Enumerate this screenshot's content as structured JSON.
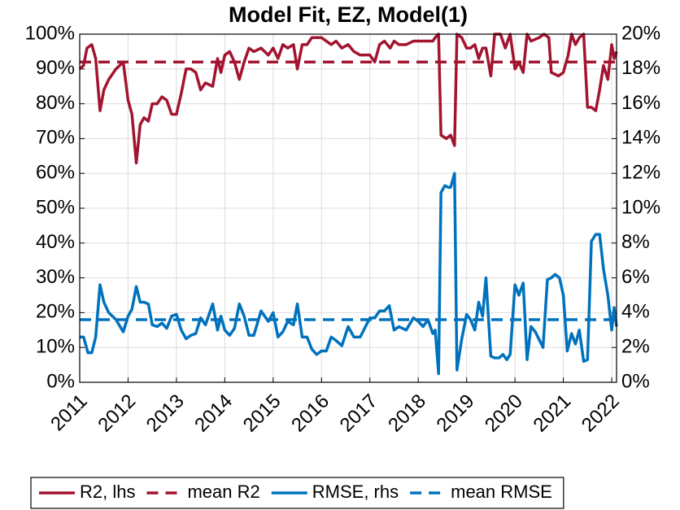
{
  "chart_data": {
    "type": "line",
    "title": "Model Fit, EZ, Model(1)",
    "xlim": [
      2011,
      2022.1
    ],
    "xticks": [
      2011,
      2012,
      2013,
      2014,
      2015,
      2016,
      2017,
      2018,
      2019,
      2020,
      2021,
      2022
    ],
    "ylim": [
      0,
      100
    ],
    "yticks": [
      {
        "value": 0,
        "label": "0%"
      },
      {
        "value": 10,
        "label": "10%"
      },
      {
        "value": 20,
        "label": "20%"
      },
      {
        "value": 30,
        "label": "30%"
      },
      {
        "value": 40,
        "label": "40%"
      },
      {
        "value": 50,
        "label": "50%"
      },
      {
        "value": 60,
        "label": "60%"
      },
      {
        "value": 70,
        "label": "70%"
      },
      {
        "value": 80,
        "label": "80%"
      },
      {
        "value": 90,
        "label": "90%"
      },
      {
        "value": 100,
        "label": "100%"
      }
    ],
    "y2lim": [
      0,
      20
    ],
    "y2ticks": [
      {
        "value": 0,
        "label": "0%"
      },
      {
        "value": 2,
        "label": "2%"
      },
      {
        "value": 4,
        "label": "4%"
      },
      {
        "value": 6,
        "label": "6%"
      },
      {
        "value": 8,
        "label": "8%"
      },
      {
        "value": 10,
        "label": "10%"
      },
      {
        "value": 12,
        "label": "12%"
      },
      {
        "value": 14,
        "label": "14%"
      },
      {
        "value": 16,
        "label": "16%"
      },
      {
        "value": 18,
        "label": "18%"
      },
      {
        "value": 20,
        "label": "20%"
      }
    ],
    "grid": true,
    "legend": "bottom",
    "series": [
      {
        "name": "R2, lhs",
        "color": "#a2142f",
        "line_style": "solid",
        "axis": "y",
        "x": [
          2011.0,
          2011.08,
          2011.15,
          2011.25,
          2011.33,
          2011.42,
          2011.5,
          2011.6,
          2011.75,
          2011.9,
          2012.0,
          2012.08,
          2012.17,
          2012.25,
          2012.33,
          2012.42,
          2012.5,
          2012.6,
          2012.7,
          2012.8,
          2012.9,
          2013.0,
          2013.1,
          2013.2,
          2013.3,
          2013.4,
          2013.5,
          2013.6,
          2013.75,
          2013.85,
          2013.92,
          2014.0,
          2014.1,
          2014.2,
          2014.3,
          2014.4,
          2014.5,
          2014.6,
          2014.75,
          2014.9,
          2015.0,
          2015.1,
          2015.2,
          2015.3,
          2015.42,
          2015.5,
          2015.6,
          2015.7,
          2015.8,
          2016.0,
          2016.2,
          2016.3,
          2016.42,
          2016.55,
          2016.67,
          2016.8,
          2017.0,
          2017.1,
          2017.2,
          2017.3,
          2017.42,
          2017.5,
          2017.6,
          2017.75,
          2017.9,
          2018.1,
          2018.3,
          2018.35,
          2018.42,
          2018.47,
          2018.58,
          2018.67,
          2018.75,
          2018.8,
          2018.9,
          2019.0,
          2019.08,
          2019.17,
          2019.25,
          2019.33,
          2019.4,
          2019.5,
          2019.58,
          2019.7,
          2019.8,
          2019.9,
          2020.0,
          2020.08,
          2020.17,
          2020.25,
          2020.33,
          2020.5,
          2020.6,
          2020.7,
          2020.75,
          2020.9,
          2021.0,
          2021.1,
          2021.17,
          2021.25,
          2021.33,
          2021.42,
          2021.5,
          2021.58,
          2021.67,
          2021.75,
          2021.83,
          2021.92,
          2022.0,
          2022.05,
          2022.1
        ],
        "values": [
          90,
          91,
          96,
          97,
          93,
          78,
          84,
          87,
          90,
          92,
          81,
          77,
          63,
          74,
          76,
          75,
          80,
          80,
          82,
          81,
          77,
          77,
          83,
          90,
          90,
          89,
          84,
          86,
          85,
          93,
          89,
          94,
          95,
          92,
          87,
          92,
          96,
          95,
          96,
          94,
          96,
          93,
          97,
          96,
          97,
          90,
          97,
          97,
          99,
          99,
          97,
          98,
          96,
          97,
          95,
          94,
          94,
          92,
          97,
          98,
          96,
          98,
          97,
          97,
          98,
          98,
          98,
          99,
          100,
          71,
          70,
          71,
          68,
          100,
          99,
          96,
          96,
          97,
          93,
          96,
          96,
          88,
          100,
          100,
          96,
          100,
          90,
          92,
          89,
          100,
          98,
          99,
          100,
          99,
          89,
          88,
          89,
          94,
          100,
          97,
          99,
          100,
          79,
          79,
          78,
          84,
          91,
          87,
          97,
          93,
          95
        ]
      },
      {
        "name": "mean R2",
        "color": "#a2142f",
        "line_style": "dashed",
        "axis": "y",
        "x": [
          2011,
          2022.1
        ],
        "values": [
          92,
          92
        ]
      },
      {
        "name": "RMSE, rhs",
        "color": "#0072bd",
        "line_style": "solid",
        "axis": "y2",
        "x": [
          2011.0,
          2011.08,
          2011.17,
          2011.25,
          2011.33,
          2011.42,
          2011.5,
          2011.6,
          2011.75,
          2011.9,
          2012.0,
          2012.08,
          2012.17,
          2012.25,
          2012.33,
          2012.42,
          2012.5,
          2012.6,
          2012.7,
          2012.8,
          2012.9,
          2013.0,
          2013.1,
          2013.2,
          2013.3,
          2013.4,
          2013.5,
          2013.6,
          2013.75,
          2013.85,
          2013.92,
          2014.0,
          2014.1,
          2014.2,
          2014.3,
          2014.4,
          2014.5,
          2014.6,
          2014.75,
          2014.9,
          2015.0,
          2015.1,
          2015.2,
          2015.3,
          2015.42,
          2015.5,
          2015.6,
          2015.7,
          2015.8,
          2015.9,
          2016.0,
          2016.1,
          2016.2,
          2016.3,
          2016.42,
          2016.55,
          2016.67,
          2016.8,
          2017.0,
          2017.1,
          2017.2,
          2017.3,
          2017.4,
          2017.5,
          2017.6,
          2017.75,
          2017.9,
          2018.0,
          2018.1,
          2018.2,
          2018.3,
          2018.35,
          2018.42,
          2018.47,
          2018.55,
          2018.62,
          2018.67,
          2018.75,
          2018.8,
          2018.9,
          2019.0,
          2019.08,
          2019.17,
          2019.25,
          2019.33,
          2019.4,
          2019.5,
          2019.58,
          2019.67,
          2019.75,
          2019.83,
          2019.9,
          2020.0,
          2020.08,
          2020.17,
          2020.25,
          2020.33,
          2020.42,
          2020.58,
          2020.67,
          2020.75,
          2020.83,
          2020.92,
          2021.0,
          2021.08,
          2021.17,
          2021.25,
          2021.33,
          2021.42,
          2021.5,
          2021.58,
          2021.67,
          2021.75,
          2021.83,
          2021.92,
          2022.0,
          2022.05,
          2022.1
        ],
        "values": [
          2.6,
          2.6,
          1.7,
          1.7,
          2.6,
          5.6,
          4.6,
          4.0,
          3.6,
          2.9,
          3.8,
          4.2,
          5.5,
          4.6,
          4.6,
          4.5,
          3.3,
          3.2,
          3.4,
          3.1,
          3.8,
          3.9,
          3.0,
          2.5,
          2.7,
          2.8,
          3.7,
          3.3,
          4.5,
          3.0,
          3.8,
          3.0,
          2.7,
          3.1,
          4.5,
          3.8,
          2.7,
          2.7,
          4.1,
          3.5,
          4.0,
          2.6,
          2.9,
          3.5,
          3.3,
          4.5,
          2.6,
          2.6,
          1.9,
          1.6,
          1.8,
          1.8,
          2.6,
          2.4,
          2.1,
          3.2,
          2.6,
          2.6,
          3.7,
          3.7,
          4.1,
          4.1,
          4.4,
          3.0,
          3.2,
          3.0,
          3.7,
          3.5,
          3.2,
          3.6,
          2.8,
          3.0,
          0.5,
          10.9,
          11.3,
          11.2,
          11.2,
          12.0,
          0.7,
          2.5,
          3.9,
          3.6,
          3.0,
          4.6,
          3.8,
          6.0,
          1.5,
          1.4,
          1.4,
          1.6,
          1.3,
          1.6,
          5.6,
          5.0,
          5.7,
          1.3,
          3.2,
          2.9,
          2.0,
          5.9,
          6.0,
          6.2,
          6.0,
          5.0,
          1.8,
          2.8,
          2.2,
          3.0,
          1.2,
          1.3,
          8.1,
          8.5,
          8.5,
          6.5,
          5.0,
          3.0,
          4.3,
          3.2
        ]
      },
      {
        "name": "mean RMSE",
        "color": "#0072bd",
        "line_style": "dashed",
        "axis": "y2",
        "x": [
          2011,
          2022.1
        ],
        "values": [
          3.6,
          3.6
        ]
      }
    ]
  }
}
